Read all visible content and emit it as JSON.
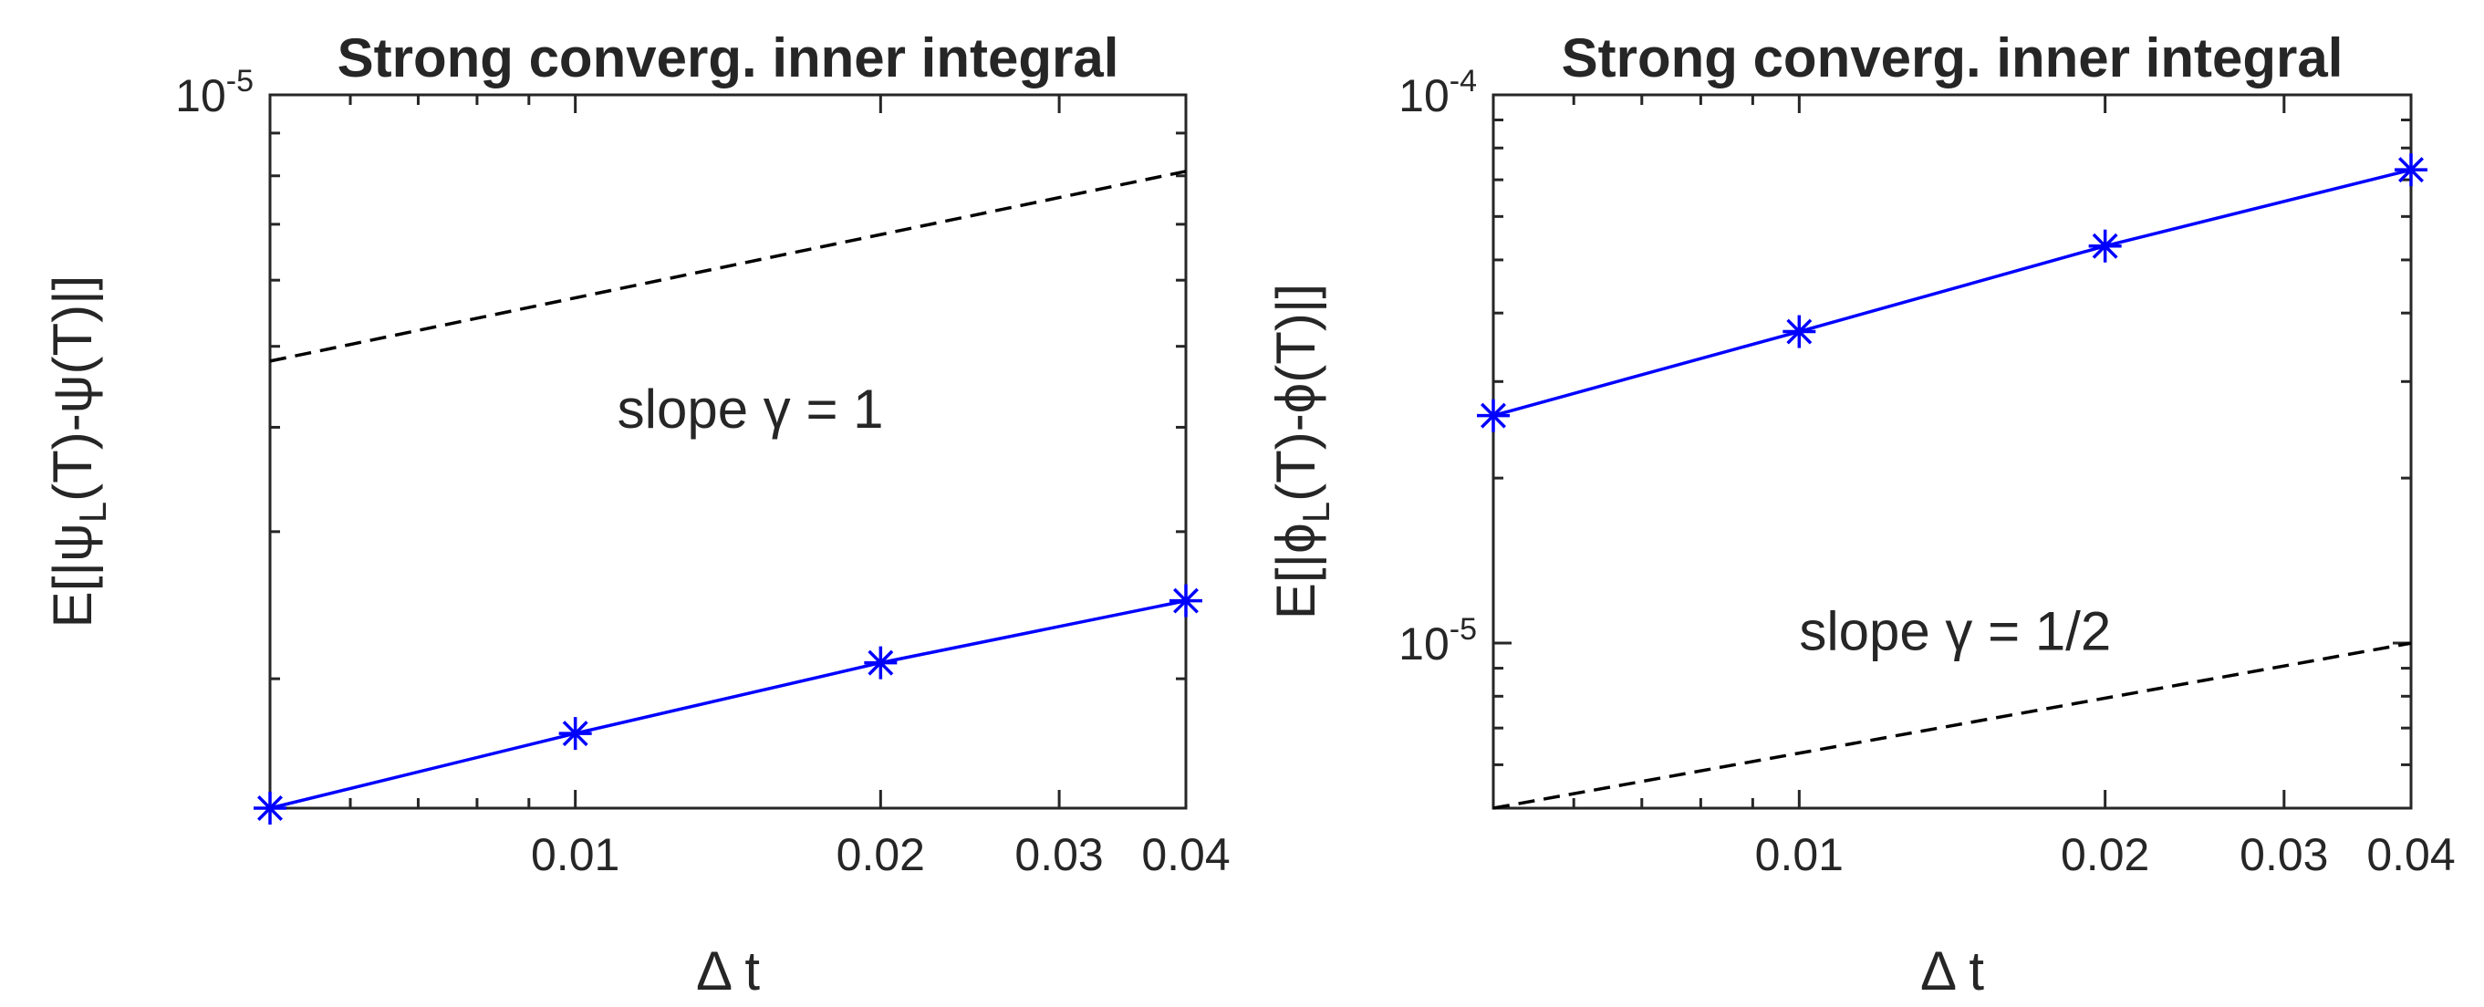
{
  "chart_data": [
    {
      "type": "line",
      "title": "Strong converg. inner integral",
      "xlabel": "Δ t",
      "ylabel": {
        "prefix": "E[|ψ",
        "sub": "L",
        "suffix": "(T)-ψ(T)|]"
      },
      "xscale": "log",
      "yscale": "log",
      "xlim": [
        0.005,
        0.04
      ],
      "ylim": [
        1.4e-06,
        1e-05
      ],
      "x_tick_labels": [
        "0.01",
        "0.02",
        "0.03",
        "0.04"
      ],
      "x_ticks": [
        0.01,
        0.02,
        0.03,
        0.04
      ],
      "y_tick_labels": [
        {
          "base": "10",
          "exp": "-5"
        }
      ],
      "y_ticks": [
        1e-05
      ],
      "grid": false,
      "series": [
        {
          "x": [
            0.005,
            0.01,
            0.02,
            0.04
          ],
          "y": [
            1.4e-06,
            1.72e-06,
            2.09e-06,
            2.48e-06
          ],
          "color": "#0000ff",
          "marker": "asterisk",
          "linestyle": "solid"
        },
        {
          "x": [
            0.005,
            0.04
          ],
          "y": [
            4.8e-06,
            8.1e-06
          ],
          "color": "#000000",
          "marker": "none",
          "linestyle": "dashed"
        }
      ],
      "annotation": {
        "text": "slope γ = 1",
        "x": 0.011,
        "y": 4.2e-06
      }
    },
    {
      "type": "line",
      "title": "Strong converg. inner integral",
      "xlabel": "Δ t",
      "ylabel": {
        "prefix": "E[|ϕ",
        "sub": "L",
        "suffix": "(T)-ϕ(T)|]"
      },
      "xscale": "log",
      "yscale": "log",
      "xlim": [
        0.005,
        0.04
      ],
      "ylim": [
        5e-06,
        0.0001
      ],
      "x_tick_labels": [
        "0.01",
        "0.02",
        "0.03",
        "0.04"
      ],
      "x_ticks": [
        0.01,
        0.02,
        0.03,
        0.04
      ],
      "y_tick_labels": [
        {
          "base": "10",
          "exp": "-5"
        },
        {
          "base": "10",
          "exp": "-4"
        }
      ],
      "y_ticks": [
        1e-05,
        0.0001
      ],
      "grid": false,
      "series": [
        {
          "x": [
            0.005,
            0.01,
            0.02,
            0.04
          ],
          "y": [
            2.6e-05,
            3.7e-05,
            5.3e-05,
            7.3e-05
          ],
          "color": "#0000ff",
          "marker": "asterisk",
          "linestyle": "solid"
        },
        {
          "x": [
            0.005,
            0.04
          ],
          "y": [
            5e-06,
            1e-05
          ],
          "color": "#000000",
          "marker": "none",
          "linestyle": "dashed"
        }
      ],
      "annotation": {
        "text": "slope γ = 1/2",
        "x": 0.01,
        "y": 1.05e-05
      }
    }
  ]
}
